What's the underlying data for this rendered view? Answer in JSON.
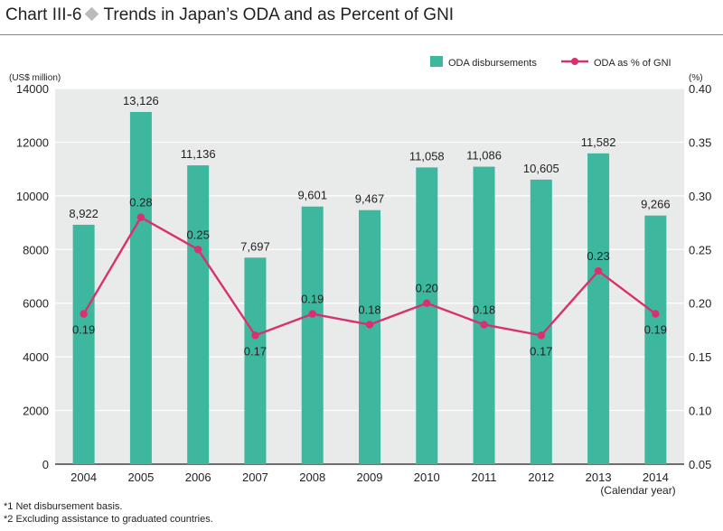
{
  "header": {
    "chart_number": "Chart III-6",
    "title_text": "Trends in Japan’s ODA and as Percent of GNI"
  },
  "footnotes": [
    "*1  Net disbursement basis.",
    "*2  Excluding assistance to graduated countries."
  ],
  "colors": {
    "bar": "#3db89e",
    "line": "#d9306f",
    "plot_bg": "#e9eaea",
    "gridline": "#ffffff"
  },
  "chart_data": {
    "type": "bar",
    "title": "Trends in Japan’s ODA and as Percent of GNI",
    "categories": [
      "2004",
      "2005",
      "2006",
      "2007",
      "2008",
      "2009",
      "2010",
      "2011",
      "2012",
      "2013",
      "2014"
    ],
    "xlabel": "(Calendar year)",
    "ylabel": "(US$ million)",
    "y2label": "(%)",
    "ylim": [
      0,
      14000
    ],
    "y2lim": [
      0.05,
      0.4
    ],
    "yticks": [
      "0",
      "2000",
      "4000",
      "6000",
      "8000",
      "10000",
      "12000",
      "14000"
    ],
    "y2ticks": [
      "0.05",
      "0.10",
      "0.15",
      "0.20",
      "0.25",
      "0.30",
      "0.35",
      "0.40"
    ],
    "grid": true,
    "legend_position": "top-right",
    "series": [
      {
        "name": "ODA disbursements",
        "kind": "bar",
        "axis": "left",
        "values": [
          8922,
          13126,
          11136,
          7697,
          9601,
          9467,
          11058,
          11086,
          10605,
          11582,
          9266
        ],
        "labels": [
          "8,922",
          "13,126",
          "11,136",
          "7,697",
          "9,601",
          "9,467",
          "11,058",
          "11,086",
          "10,605",
          "11,582",
          "9,266"
        ]
      },
      {
        "name": "ODA as % of GNI",
        "kind": "line",
        "axis": "right",
        "values": [
          0.19,
          0.28,
          0.25,
          0.17,
          0.19,
          0.18,
          0.2,
          0.18,
          0.17,
          0.23,
          0.19
        ],
        "labels": [
          "0.19",
          "0.28",
          "0.25",
          "0.17",
          "0.19",
          "0.18",
          "0.20",
          "0.18",
          "0.17",
          "0.23",
          "0.19"
        ]
      }
    ]
  }
}
